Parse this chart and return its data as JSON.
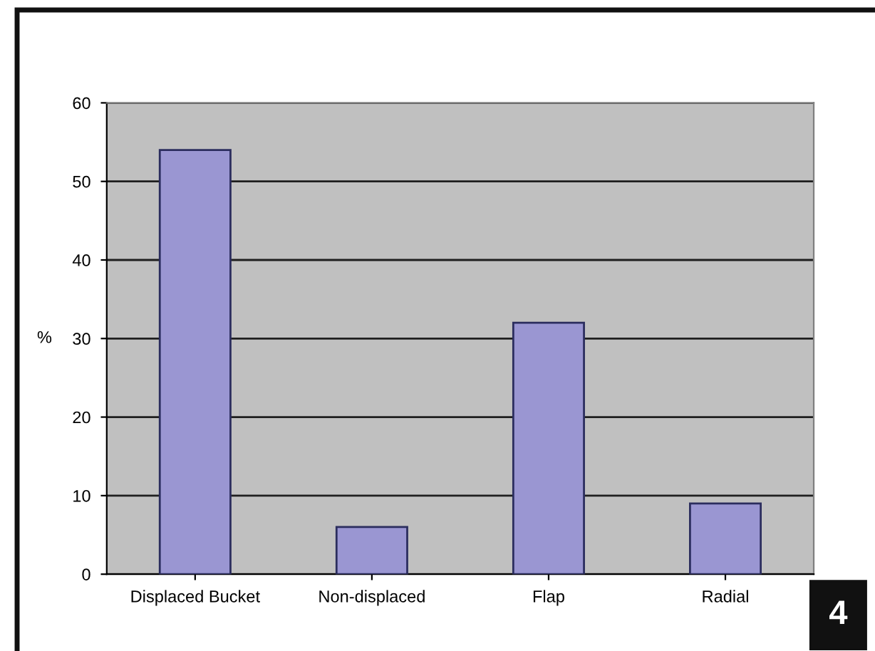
{
  "chart_data": {
    "type": "bar",
    "ylabel": "%",
    "categories": [
      "Displaced Bucket",
      "Non-displaced",
      "Flap",
      "Radial"
    ],
    "values": [
      54,
      6,
      32,
      9
    ],
    "color": "#9a96d2",
    "ylim": [
      0,
      60
    ],
    "yticks": [
      0,
      10,
      20,
      30,
      40,
      50,
      60
    ],
    "grid": "y",
    "annotations": [
      "4"
    ]
  }
}
